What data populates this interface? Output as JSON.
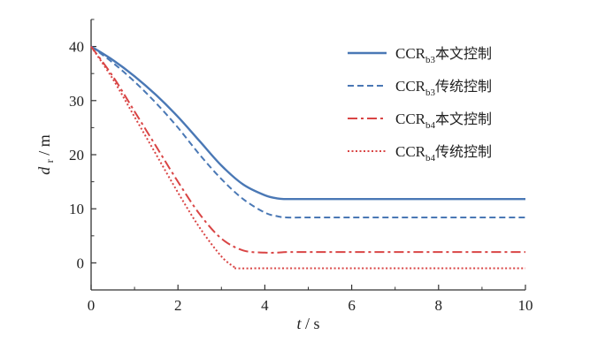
{
  "chart_data": {
    "type": "line",
    "xlabel": {
      "var": "t",
      "unit": "s"
    },
    "ylabel": {
      "var": "d",
      "sub": "r",
      "unit": "m"
    },
    "xlim": [
      0,
      10
    ],
    "ylim": [
      -5,
      45
    ],
    "xticks": [
      0,
      2,
      4,
      6,
      8,
      10
    ],
    "yticks": [
      0,
      10,
      20,
      30,
      40
    ],
    "grid": false,
    "legend_position": "top-right",
    "series": [
      {
        "name": "CCRb3本文控制",
        "legend": {
          "base": "CCR",
          "sub": "b3",
          "suffix": "本文控制"
        },
        "color": "#4a78b5",
        "dash": "solid",
        "x": [
          0,
          0.5,
          1,
          1.5,
          2,
          2.5,
          3,
          3.5,
          4,
          4.3,
          4.5,
          5,
          6,
          7,
          8,
          9,
          10
        ],
        "y": [
          40,
          37.5,
          34.5,
          31,
          27,
          22.5,
          18,
          14.5,
          12.5,
          11.9,
          11.8,
          11.8,
          11.8,
          11.8,
          11.8,
          11.8,
          11.8
        ]
      },
      {
        "name": "CCRb3传统控制",
        "legend": {
          "base": "CCR",
          "sub": "b3",
          "suffix": "传统控制"
        },
        "color": "#4a78b5",
        "dash": "dashed",
        "x": [
          0,
          0.5,
          1,
          1.5,
          2,
          2.5,
          3,
          3.5,
          4,
          4.3,
          4.5,
          5,
          6,
          7,
          8,
          9,
          10
        ],
        "y": [
          40,
          37,
          33.5,
          29.5,
          25,
          20,
          15.5,
          11.8,
          9.3,
          8.6,
          8.4,
          8.4,
          8.4,
          8.4,
          8.4,
          8.4,
          8.4
        ]
      },
      {
        "name": "CCRb4本文控制",
        "legend": {
          "base": "CCR",
          "sub": "b4",
          "suffix": "本文控制"
        },
        "color": "#d94545",
        "dash": "dashdot",
        "x": [
          0,
          0.5,
          1,
          1.5,
          2,
          2.5,
          3,
          3.5,
          4,
          4.3,
          4.5,
          5,
          6,
          7,
          8,
          9,
          10
        ],
        "y": [
          40,
          34.5,
          28,
          21.5,
          15,
          9,
          4.5,
          2.3,
          1.9,
          1.9,
          2.0,
          2.0,
          2.0,
          2.0,
          2.0,
          2.0,
          2.0
        ]
      },
      {
        "name": "CCRb4传统控制",
        "legend": {
          "base": "CCR",
          "sub": "b4",
          "suffix": "传统控制"
        },
        "color": "#d94545",
        "dash": "dotted",
        "x": [
          0,
          0.5,
          1,
          1.5,
          2,
          2.5,
          3,
          3.3,
          3.35,
          4,
          5,
          6,
          7,
          8,
          9,
          10
        ],
        "y": [
          40,
          34,
          27,
          20,
          13,
          6.5,
          1.2,
          -0.8,
          -1.0,
          -1.0,
          -1.0,
          -1.0,
          -1.0,
          -1.0,
          -1.0,
          -1.0
        ]
      }
    ]
  }
}
